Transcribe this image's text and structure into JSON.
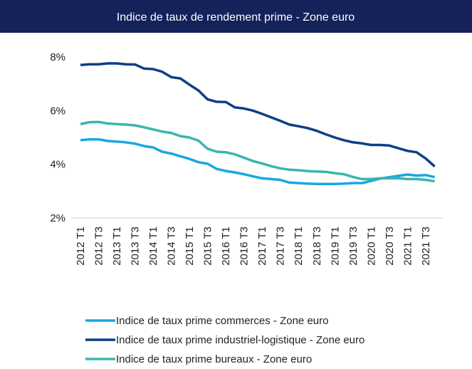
{
  "chart_data": {
    "type": "line",
    "title": "Indice de taux de rendement prime - Zone euro",
    "categories": [
      "2012 T1",
      null,
      "2012 T3",
      null,
      "2013 T1",
      null,
      "2013 T3",
      null,
      "2014 T1",
      null,
      "2014 T3",
      null,
      "2015 T1",
      null,
      "2015 T3",
      null,
      "2016 T1",
      null,
      "2016 T3",
      null,
      "2017 T1",
      null,
      "2017 T3",
      null,
      "2018 T1",
      null,
      "2018 T3",
      null,
      "2019 T1",
      null,
      "2019 T3",
      null,
      "2020 T1",
      null,
      "2020 T3",
      null,
      "2021 T1",
      null,
      "2021 T3",
      null
    ],
    "series": [
      {
        "name": "Indice de taux prime commerces - Zone euro",
        "color": "#1aa7e0",
        "values": [
          4.9,
          4.93,
          4.93,
          4.87,
          4.85,
          4.82,
          4.77,
          4.68,
          4.63,
          4.47,
          4.4,
          4.3,
          4.2,
          4.08,
          4.02,
          3.83,
          3.75,
          3.7,
          3.63,
          3.55,
          3.48,
          3.45,
          3.42,
          3.32,
          3.3,
          3.28,
          3.27,
          3.27,
          3.27,
          3.28,
          3.3,
          3.3,
          3.38,
          3.47,
          3.52,
          3.57,
          3.62,
          3.58,
          3.6,
          3.52
        ]
      },
      {
        "name": "Indice de taux prime industriel-logistique - Zone euro",
        "color": "#0c3f86",
        "values": [
          7.7,
          7.73,
          7.73,
          7.76,
          7.76,
          7.73,
          7.72,
          7.57,
          7.55,
          7.45,
          7.25,
          7.2,
          6.97,
          6.75,
          6.42,
          6.33,
          6.32,
          6.12,
          6.08,
          6.0,
          5.88,
          5.75,
          5.62,
          5.48,
          5.42,
          5.35,
          5.25,
          5.12,
          5.0,
          4.9,
          4.82,
          4.78,
          4.72,
          4.72,
          4.7,
          4.6,
          4.5,
          4.45,
          4.22,
          3.92
        ]
      },
      {
        "name": "Indice de taux prime bureaux - Zone euro",
        "color": "#3bb4b0",
        "values": [
          5.5,
          5.57,
          5.58,
          5.52,
          5.5,
          5.48,
          5.45,
          5.38,
          5.3,
          5.22,
          5.17,
          5.05,
          5.0,
          4.88,
          4.58,
          4.47,
          4.45,
          4.37,
          4.25,
          4.12,
          4.03,
          3.93,
          3.85,
          3.8,
          3.78,
          3.75,
          3.73,
          3.72,
          3.67,
          3.63,
          3.53,
          3.45,
          3.45,
          3.48,
          3.48,
          3.48,
          3.45,
          3.45,
          3.42,
          3.37
        ]
      }
    ],
    "ylim": [
      2,
      8
    ],
    "yticks": [
      {
        "value": 2,
        "label": "2%"
      },
      {
        "value": 4,
        "label": "4%"
      },
      {
        "value": 6,
        "label": "6%"
      },
      {
        "value": 8,
        "label": "8%"
      }
    ],
    "grid": false
  }
}
